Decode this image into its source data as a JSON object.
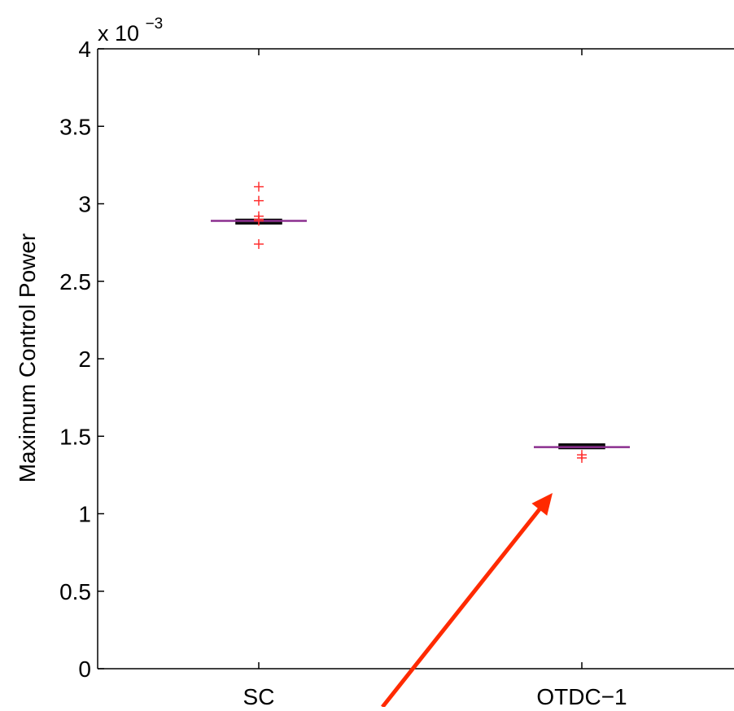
{
  "chart_data": {
    "type": "box",
    "title": "",
    "xlabel": "",
    "ylabel": "Maximum Control Power",
    "y_exponent_base": "x 10",
    "y_exponent_power": "−3",
    "ylim": [
      0,
      4
    ],
    "yticks": [
      0,
      0.5,
      1,
      1.5,
      2,
      2.5,
      3,
      3.5,
      4
    ],
    "ytick_labels": [
      "0",
      "0.5",
      "1",
      "1.5",
      "2",
      "2.5",
      "3",
      "3.5",
      "4"
    ],
    "categories": [
      "SC",
      "OTDC−1"
    ],
    "boxes": [
      {
        "category": "SC",
        "q1": 2.87,
        "median": 2.89,
        "q3": 2.9,
        "whisker_low": 2.87,
        "whisker_high": 2.9,
        "outliers": [
          3.11,
          3.02,
          2.92,
          2.9,
          2.89,
          2.74
        ]
      },
      {
        "category": "OTDC−1",
        "q1": 1.42,
        "median": 1.43,
        "q3": 1.45,
        "whisker_low": 1.42,
        "whisker_high": 1.45,
        "outliers": [
          1.38,
          1.36
        ]
      }
    ],
    "colors": {
      "box": "#000000",
      "median": "#8b2f8f",
      "outlier": "#ff3030",
      "axis": "#000000",
      "arrow": "#ff2a00"
    },
    "grid": false,
    "legend": "none",
    "annotation": {
      "type": "arrow",
      "points_to": "OTDC−1",
      "color": "#ff2a00"
    }
  }
}
